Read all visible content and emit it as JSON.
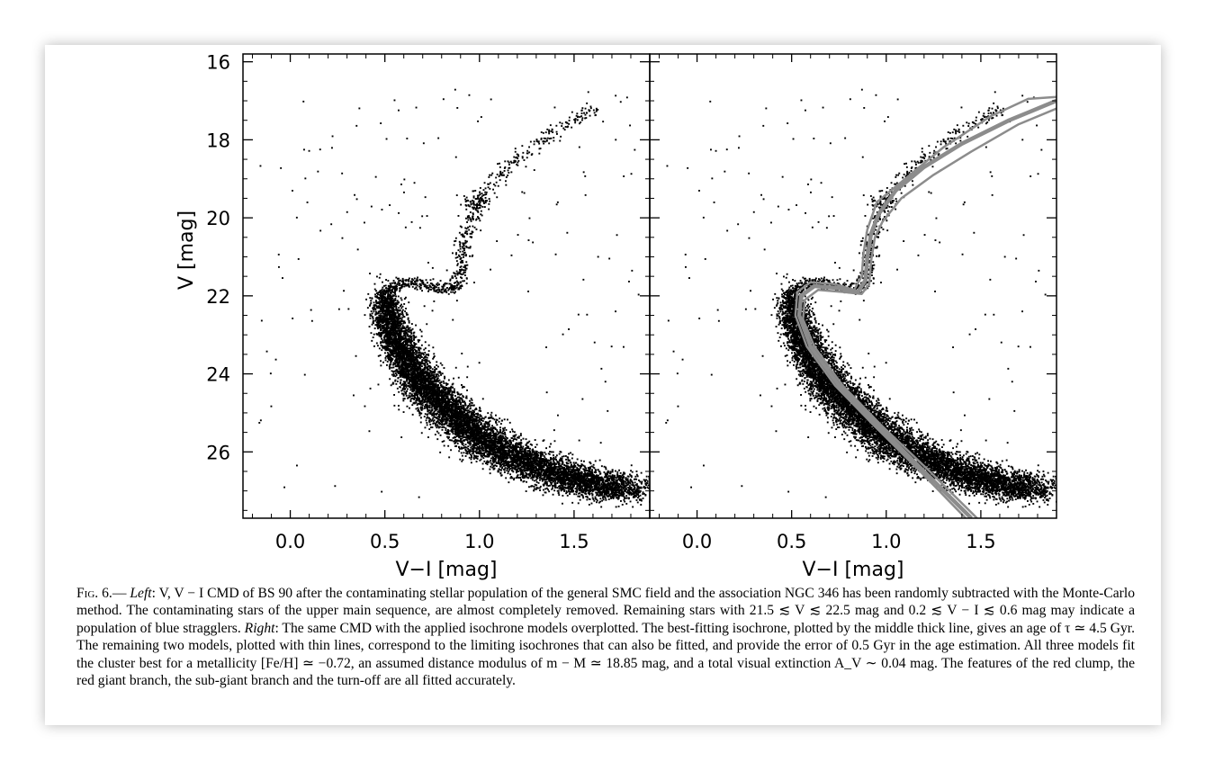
{
  "chart_data": [
    {
      "type": "scatter",
      "panel": "left",
      "xlabel": "V−I [mag]",
      "ylabel": "V [mag]",
      "xlim": [
        -0.25,
        1.9
      ],
      "ylim": [
        27.7,
        15.8
      ],
      "y_inverted": true,
      "x_ticks": [
        0.0,
        0.5,
        1.0,
        1.5
      ],
      "x_tick_labels": [
        "0.0",
        "0.5",
        "1.0",
        "1.5"
      ],
      "y_ticks": [
        16,
        18,
        20,
        22,
        24,
        26
      ],
      "y_tick_labels": [
        "16",
        "18",
        "20",
        "22",
        "24",
        "26"
      ],
      "grid": false,
      "series": [
        {
          "kind": "stars",
          "main_sequence": [
            [
              0.5,
              21.9
            ],
            [
              0.52,
              22.6
            ],
            [
              0.58,
              23.3
            ],
            [
              0.66,
              24.0
            ],
            [
              0.76,
              24.6
            ],
            [
              0.9,
              25.2
            ],
            [
              1.05,
              25.8
            ],
            [
              1.25,
              26.3
            ],
            [
              1.5,
              26.7
            ],
            [
              1.8,
              27.0
            ]
          ],
          "sub_giant_branch": [
            [
              0.52,
              21.8
            ],
            [
              0.6,
              21.65
            ],
            [
              0.7,
              21.7
            ],
            [
              0.8,
              21.8
            ],
            [
              0.88,
              21.8
            ]
          ],
          "red_giant_branch": [
            [
              0.88,
              21.8
            ],
            [
              0.9,
              21.3
            ],
            [
              0.92,
              20.6
            ],
            [
              0.96,
              19.9
            ],
            [
              1.05,
              19.2
            ],
            [
              1.2,
              18.5
            ],
            [
              1.4,
              17.8
            ],
            [
              1.62,
              17.1
            ]
          ],
          "red_clump": [
            0.98,
            19.6
          ]
        }
      ]
    },
    {
      "type": "scatter",
      "panel": "right",
      "xlabel": "V−I [mag]",
      "xlim": [
        -0.25,
        1.9
      ],
      "ylim": [
        27.7,
        15.8
      ],
      "y_inverted": true,
      "x_ticks": [
        0.0,
        0.5,
        1.0,
        1.5
      ],
      "x_tick_labels": [
        "0.0",
        "0.5",
        "1.0",
        "1.5"
      ],
      "grid": false,
      "series": [
        {
          "kind": "stars",
          "same_as": "left"
        },
        {
          "kind": "isochrones",
          "color": "#8c8c8c",
          "lines": [
            {
              "width": "thick",
              "points": [
                [
                  1.45,
                  27.7
                ],
                [
                  1.2,
                  26.5
                ],
                [
                  0.95,
                  25.3
                ],
                [
                  0.75,
                  24.3
                ],
                [
                  0.6,
                  23.3
                ],
                [
                  0.54,
                  22.5
                ],
                [
                  0.55,
                  22.0
                ],
                [
                  0.62,
                  21.75
                ],
                [
                  0.75,
                  21.8
                ],
                [
                  0.85,
                  21.9
                ],
                [
                  0.89,
                  21.6
                ],
                [
                  0.9,
                  21.0
                ],
                [
                  0.92,
                  20.4
                ],
                [
                  0.96,
                  19.9
                ],
                [
                  1.05,
                  19.3
                ],
                [
                  1.2,
                  18.7
                ],
                [
                  1.4,
                  18.1
                ],
                [
                  1.65,
                  17.5
                ],
                [
                  1.9,
                  17.0
                ]
              ]
            },
            {
              "width": "thin",
              "points": [
                [
                  1.42,
                  27.7
                ],
                [
                  1.18,
                  26.5
                ],
                [
                  0.93,
                  25.3
                ],
                [
                  0.73,
                  24.3
                ],
                [
                  0.58,
                  23.3
                ],
                [
                  0.52,
                  22.5
                ],
                [
                  0.53,
                  21.9
                ],
                [
                  0.6,
                  21.65
                ],
                [
                  0.73,
                  21.7
                ],
                [
                  0.83,
                  21.85
                ],
                [
                  0.87,
                  21.5
                ],
                [
                  0.88,
                  20.9
                ],
                [
                  0.9,
                  20.3
                ],
                [
                  0.95,
                  19.6
                ],
                [
                  1.1,
                  19.0
                ],
                [
                  1.3,
                  18.2
                ],
                [
                  1.55,
                  17.4
                ],
                [
                  1.75,
                  16.95
                ],
                [
                  1.9,
                  16.9
                ]
              ]
            },
            {
              "width": "thin",
              "points": [
                [
                  1.48,
                  27.7
                ],
                [
                  1.23,
                  26.5
                ],
                [
                  0.97,
                  25.3
                ],
                [
                  0.77,
                  24.3
                ],
                [
                  0.62,
                  23.3
                ],
                [
                  0.56,
                  22.6
                ],
                [
                  0.57,
                  22.1
                ],
                [
                  0.64,
                  21.85
                ],
                [
                  0.77,
                  21.9
                ],
                [
                  0.87,
                  21.95
                ],
                [
                  0.91,
                  21.7
                ],
                [
                  0.92,
                  21.1
                ],
                [
                  0.94,
                  20.5
                ],
                [
                  0.98,
                  20.1
                ],
                [
                  1.08,
                  19.5
                ],
                [
                  1.25,
                  18.9
                ],
                [
                  1.45,
                  18.3
                ],
                [
                  1.7,
                  17.6
                ],
                [
                  1.9,
                  17.2
                ]
              ]
            }
          ]
        }
      ]
    }
  ],
  "caption": {
    "fig_label": "Fig. 6.",
    "dash": "— ",
    "left_word": "Left",
    "seg1": ": V, V − I CMD of BS 90 after the contaminating stellar population of the general SMC field and the association NGC 346 has been randomly subtracted with the Monte-Carlo method. The contaminating stars of the upper main sequence, are almost completely removed. Remaining stars with 21.5 ≲ V ≲ 22.5 mag and 0.2 ≲ V − I ≲ 0.6 mag may indicate a population of blue stragglers. ",
    "right_word": "Right",
    "seg2": ": The same CMD with the applied isochrone models overplotted. The best-fitting isochrone, plotted by the middle thick line, gives an age of τ ≃ 4.5 Gyr. The remaining two models, plotted with thin lines, correspond to the limiting isochrones that can also be fitted, and provide the error of 0.5 Gyr in the age estimation. All three models fit the cluster best for a metallicity [Fe/H] ≃ −0.72, an assumed distance modulus of m − M ≃ 18.85 mag, and a total visual extinction A_V ∼ 0.04 mag. The features of the red clump, the red giant branch, the sub-giant branch and the turn-off are all fitted accurately."
  }
}
